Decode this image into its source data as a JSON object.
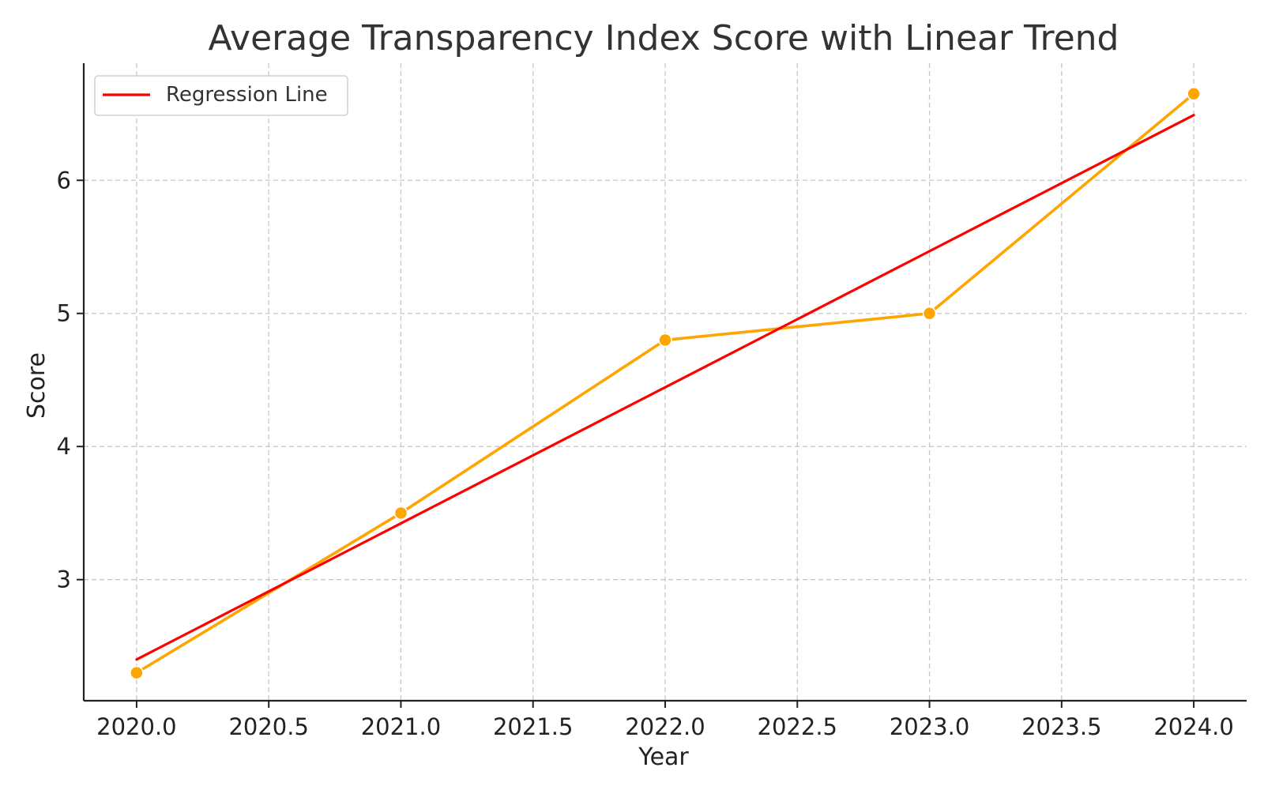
{
  "chart_data": {
    "type": "line",
    "title": "Average Transparency Index Score with Linear Trend",
    "xlabel": "Year",
    "ylabel": "Score",
    "xlim": [
      2019.8,
      2024.2
    ],
    "ylim": [
      2.09,
      6.88
    ],
    "x_ticks": [
      "2020.0",
      "2020.5",
      "2021.0",
      "2021.5",
      "2022.0",
      "2022.5",
      "2023.0",
      "2023.5",
      "2024.0"
    ],
    "y_ticks": [
      "3",
      "4",
      "5",
      "6"
    ],
    "grid": true,
    "legend_position": "top-left",
    "series": [
      {
        "x": [
          2020,
          2021,
          2022,
          2023,
          2024
        ],
        "y": [
          2.3,
          3.5,
          4.8,
          5.0,
          6.65
        ],
        "color": "#FFA500",
        "marker": "circle"
      },
      {
        "name": "Regression Line",
        "x": [
          2020,
          2024
        ],
        "y": [
          2.4,
          6.49
        ],
        "color": "#FF0000",
        "marker": "none"
      }
    ]
  }
}
